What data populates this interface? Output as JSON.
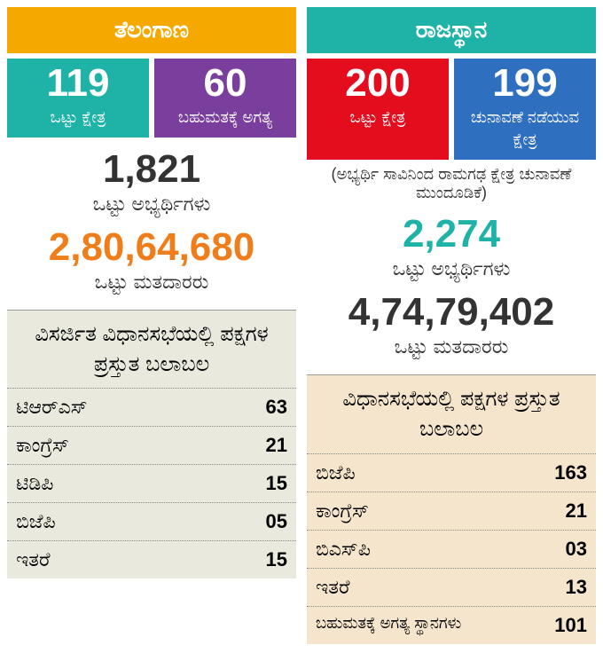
{
  "left": {
    "title": "ತೆಲಂಗಾಣ",
    "header_bg": "#f5a800",
    "box1_num": "119",
    "box1_label": "ಒಟ್ಟು ಕ್ಷೇತ್ರ",
    "box1_bg": "#1fb3a8",
    "box2_num": "60",
    "box2_label": "ಬಹುಮತಕ್ಕೆ ಅಗತ್ಯ",
    "box2_bg": "#7a3f9c",
    "stat1_num": "1,821",
    "stat1_label": "ಒಟ್ಟು ಅಭ್ಯರ್ಥಿಗಳು",
    "stat1_color": "#333333",
    "stat2_num": "2,80,64,680",
    "stat2_label": "ಒಟ್ಟು ಮತದಾರರು",
    "stat2_color": "#ef7d1a",
    "table_title": "ವಿಸರ್ಜಿತ ವಿಧಾನಸಭೆಯಲ್ಲಿ ಪಕ್ಷಗಳ ಪ್ರಸ್ತುತ ಬಲಾಬಲ",
    "table_bg": "#e9eadd",
    "rows": [
      {
        "name": "ಟಿಆರ್‌ಎಸ್",
        "val": "63"
      },
      {
        "name": "ಕಾಂಗ್ರೆಸ್",
        "val": "21"
      },
      {
        "name": "ಟಿಡಿಪಿ",
        "val": "15"
      },
      {
        "name": "ಬಿಜೆಪಿ",
        "val": "05"
      },
      {
        "name": "ಇತರೆ",
        "val": "15"
      }
    ]
  },
  "right": {
    "title": "ರಾಜಸ್ಥಾನ",
    "header_bg": "#1fb3a8",
    "box1_num": "200",
    "box1_label": "ಒಟ್ಟು ಕ್ಷೇತ್ರ",
    "box1_bg": "#e40d1e",
    "box2_num": "199",
    "box2_label": "ಚುನಾವಣೆ ನಡೆಯುವ ಕ್ಷೇತ್ರ",
    "box2_bg": "#2f6fbf",
    "note": "(ಅಭ್ಯರ್ಥಿ ಸಾವಿನಿಂದ ರಾಮಗಢ ಕ್ಷೇತ್ರ ಚುನಾವಣೆ ಮುಂದೂಡಿಕೆ)",
    "stat1_num": "2,274",
    "stat1_label": "ಒಟ್ಟು ಅಭ್ಯರ್ಥಿಗಳು",
    "stat1_color": "#1fb3a8",
    "stat2_num": "4,74,79,402",
    "stat2_label": "ಒಟ್ಟು ಮತದಾರರು",
    "stat2_color": "#333333",
    "table_title": "ವಿಧಾನಸಭೆಯಲ್ಲಿ ಪಕ್ಷಗಳ ಪ್ರಸ್ತುತ ಬಲಾಬಲ",
    "table_bg": "#f5e5cc",
    "rows": [
      {
        "name": "ಬಿಜೆಪಿ",
        "val": "163"
      },
      {
        "name": "ಕಾಂಗ್ರೆಸ್",
        "val": "21"
      },
      {
        "name": "ಬಿಎಸ್‌ಪಿ",
        "val": "03"
      },
      {
        "name": "ಇತರೆ",
        "val": "13"
      },
      {
        "name": "ಬಹುಮತಕ್ಕೆ ಅಗತ್ಯ ಸ್ಥಾನಗಳು",
        "val": "101"
      }
    ]
  }
}
